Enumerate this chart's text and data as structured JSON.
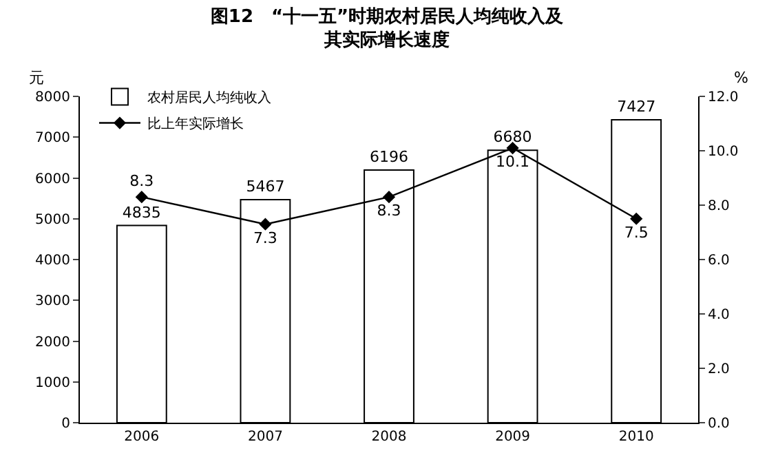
{
  "chart_data": {
    "type": "bar",
    "title": "图12　“十一五”时期农村居民人均纯收入及其实际增长速度",
    "categories": [
      "2006",
      "2007",
      "2008",
      "2009",
      "2010"
    ],
    "ylabel": "元",
    "y2label": "%",
    "series": [
      {
        "name": "农村居民人均纯收入",
        "color": "#ffffff",
        "values": [
          4835,
          5467,
          6196,
          6680,
          7427
        ]
      },
      {
        "name": "比上年实际增长",
        "type": "line",
        "axis": "y2",
        "color": "#000000",
        "marker": "diamond",
        "values": [
          8.3,
          7.3,
          8.3,
          10.1,
          7.5
        ]
      }
    ],
    "ylim": [
      0,
      8000
    ],
    "yticks": [
      0,
      1000,
      2000,
      3000,
      4000,
      5000,
      6000,
      7000,
      8000
    ],
    "y2lim": [
      0,
      12
    ],
    "y2ticks": [
      {
        "value": 0,
        "label": "0.0"
      },
      {
        "value": 2,
        "label": "2.0"
      },
      {
        "value": 4,
        "label": "4.0"
      },
      {
        "value": 6,
        "label": "6.0"
      },
      {
        "value": 8,
        "label": "8.0"
      },
      {
        "value": 10,
        "label": "10.0"
      },
      {
        "value": 12,
        "label": "12.0"
      }
    ],
    "data_labels": true,
    "grid": false,
    "legend": "top left"
  }
}
